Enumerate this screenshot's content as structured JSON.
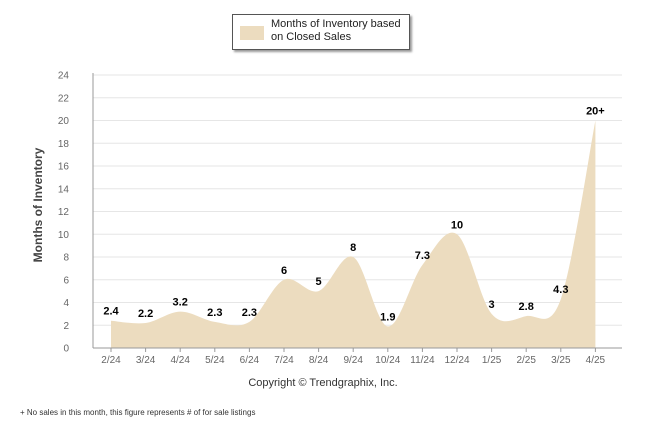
{
  "legend": {
    "label": "Months of Inventory based on Closed Sales"
  },
  "copyright": "Copyright © Trendgraphix, Inc.",
  "footnote": "+  No sales in this month, this figure represents # of for sale listings",
  "colors": {
    "area_fill": "#ecdcbf",
    "grid": "#e6e6e6",
    "axis": "#999999"
  },
  "chart_data": {
    "type": "area",
    "ylabel": "Months of Inventory",
    "ylim": [
      0,
      24
    ],
    "yticks": [
      0,
      2,
      4,
      6,
      8,
      10,
      12,
      14,
      16,
      18,
      20,
      22,
      24
    ],
    "categories": [
      "2/24",
      "3/24",
      "4/24",
      "5/24",
      "6/24",
      "7/24",
      "8/24",
      "9/24",
      "10/24",
      "11/24",
      "12/24",
      "1/25",
      "2/25",
      "3/25",
      "4/25"
    ],
    "series": [
      {
        "values": [
          2.4,
          2.2,
          3.2,
          2.3,
          2.3,
          6,
          5,
          8,
          1.9,
          7.3,
          10,
          3,
          2.8,
          4.3,
          20
        ]
      }
    ],
    "data_labels": [
      "2.4",
      "2.2",
      "3.2",
      "2.3",
      "2.3",
      "6",
      "5",
      "8",
      "1.9",
      "7.3",
      "10",
      "3",
      "2.8",
      "4.3",
      "20+"
    ],
    "grid": true,
    "legend_position": "top"
  }
}
